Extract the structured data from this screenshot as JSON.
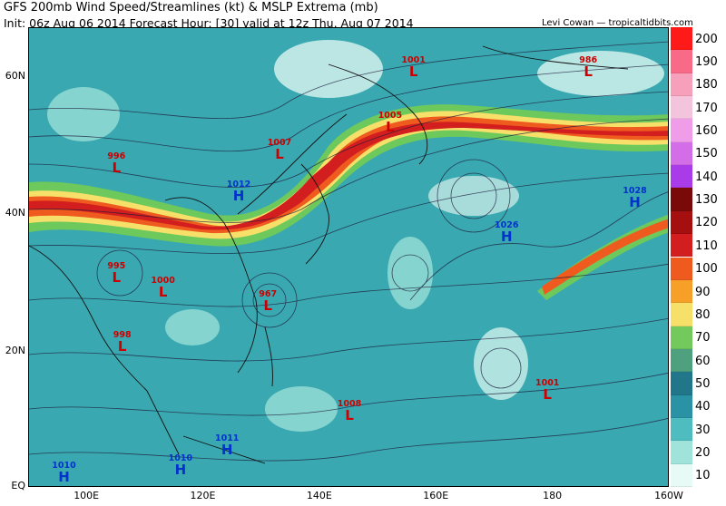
{
  "header": {
    "title": "GFS 200mb Wind Speed/Streamlines (kt) & MSLP Extrema (mb)",
    "subtitle": "Init: 06z Aug 06 2014 Forecast Hour: [30] valid at 12z Thu, Aug 07 2014",
    "credit": "Levi Cowan — tropicaltidbits.com"
  },
  "colors": {
    "low": "#cc0000",
    "high": "#0033cc"
  },
  "colorbar": {
    "labels": [
      "200",
      "190",
      "180",
      "170",
      "160",
      "150",
      "140",
      "130",
      "120",
      "110",
      "100",
      "90",
      "80",
      "70",
      "60",
      "50",
      "40",
      "30",
      "20",
      "10"
    ],
    "colors": [
      "#ff1a1a",
      "#f86a86",
      "#f6a0bb",
      "#f3c4dc",
      "#ef9de8",
      "#d46ee8",
      "#a93be8",
      "#7a0a0a",
      "#a50f0f",
      "#d21e1e",
      "#ef5a1e",
      "#f6a02a",
      "#f6e06a",
      "#74c95c",
      "#4fa07e",
      "#22768a",
      "#2b92a5",
      "#4fbcc0",
      "#9fe3da",
      "#e6fbf6"
    ]
  },
  "axes": {
    "lat_labels": [
      "60N",
      "40N",
      "20N",
      "EQ"
    ],
    "lon_labels": [
      "100E",
      "120E",
      "140E",
      "160E",
      "180",
      "160W"
    ]
  },
  "pressure_systems": [
    {
      "type": "L",
      "value": "1001",
      "lon": 156,
      "lat": 61
    },
    {
      "type": "L",
      "value": "986",
      "lon": 186,
      "lat": 61
    },
    {
      "type": "L",
      "value": "1005",
      "lon": 152,
      "lat": 53
    },
    {
      "type": "L",
      "value": "1007",
      "lon": 133,
      "lat": 49
    },
    {
      "type": "L",
      "value": "996",
      "lon": 105,
      "lat": 47
    },
    {
      "type": "H",
      "value": "1012",
      "lon": 126,
      "lat": 43
    },
    {
      "type": "H",
      "value": "1028",
      "lon": 194,
      "lat": 42
    },
    {
      "type": "H",
      "value": "1026",
      "lon": 172,
      "lat": 37
    },
    {
      "type": "L",
      "value": "995",
      "lon": 105,
      "lat": 31
    },
    {
      "type": "L",
      "value": "1000",
      "lon": 113,
      "lat": 29
    },
    {
      "type": "L",
      "value": "967",
      "lon": 131,
      "lat": 27
    },
    {
      "type": "L",
      "value": "998",
      "lon": 106,
      "lat": 21
    },
    {
      "type": "L",
      "value": "1001",
      "lon": 179,
      "lat": 14
    },
    {
      "type": "L",
      "value": "1008",
      "lon": 145,
      "lat": 11
    },
    {
      "type": "H",
      "value": "1011",
      "lon": 124,
      "lat": 6
    },
    {
      "type": "H",
      "value": "1010",
      "lon": 116,
      "lat": 3
    },
    {
      "type": "H",
      "value": "1010",
      "lon": 96,
      "lat": 2
    }
  ]
}
